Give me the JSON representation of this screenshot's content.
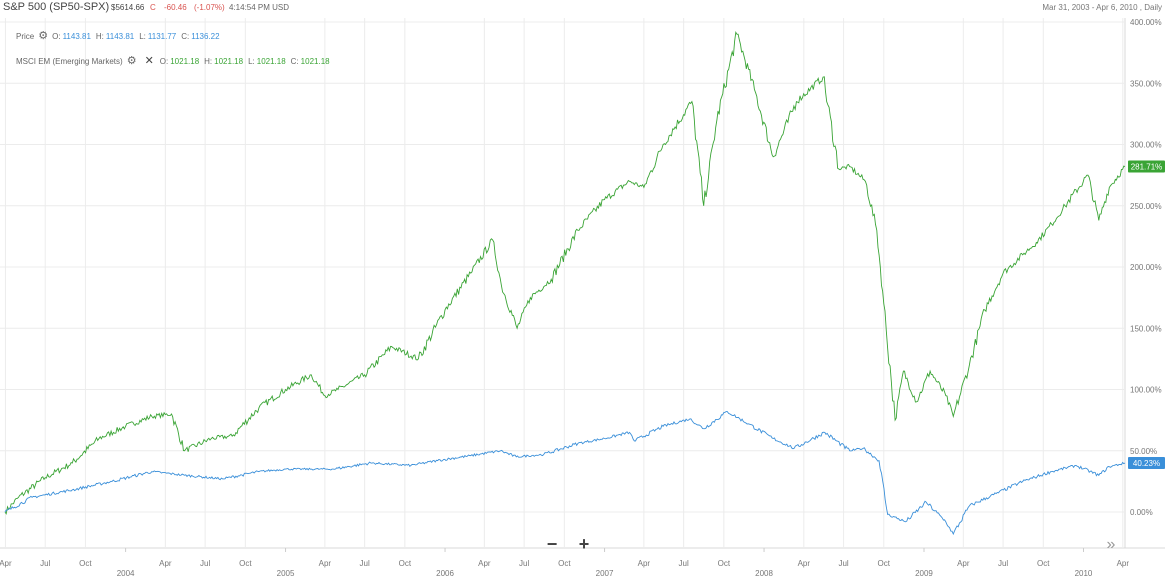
{
  "header": {
    "symbol": "S&P 500 (SP50-SPX)",
    "last_price": "$5614.66",
    "close_flag": "C",
    "change": "-60.46",
    "change_pct": "(-1.07%)",
    "time": "4:14:54 PM USD",
    "date_range": "Mar 31, 2003 - Apr 6, 2010 , Daily"
  },
  "legend": {
    "price": {
      "label": "Price",
      "icon": "gear-icon",
      "o_label": "O:",
      "o": "1143.81",
      "h_label": "H:",
      "h": "1143.81",
      "l_label": "L:",
      "l": "1131.77",
      "c_label": "C:",
      "c": "1136.22"
    },
    "msci": {
      "label": "MSCI EM (Emerging Markets)",
      "icon": "gear-icon",
      "remove_icon": "close-icon",
      "o_label": "O:",
      "o": "1021.18",
      "h_label": "H:",
      "h": "1021.18",
      "l_label": "L:",
      "l": "1021.18",
      "c_label": "C:",
      "c": "1021.18"
    }
  },
  "controls": {
    "zoom_out": "−",
    "zoom_in": "+",
    "scroll_right": "»"
  },
  "colors": {
    "price": "#3a8fd9",
    "msci": "#3aa435",
    "grid": "#ececec"
  },
  "chart_data": {
    "type": "line",
    "title": "",
    "xlabel": "",
    "ylabel": "",
    "x_range": [
      "2003-03-31",
      "2010-04-06"
    ],
    "ylim": [
      -25,
      405
    ],
    "y_unit": "%",
    "y_ticks": [
      "0.00%",
      "50.00%",
      "100.00%",
      "150.00%",
      "200.00%",
      "250.00%",
      "300.00%",
      "350.00%",
      "400.00%"
    ],
    "y_tick_values": [
      0,
      50,
      100,
      150,
      200,
      250,
      300,
      350,
      400
    ],
    "x_month_ticks": [
      {
        "label": "Apr",
        "date": "2003-04-01"
      },
      {
        "label": "Jul",
        "date": "2003-07-01"
      },
      {
        "label": "Oct",
        "date": "2003-10-01"
      },
      {
        "label": "Apr",
        "date": "2004-04-01"
      },
      {
        "label": "Jul",
        "date": "2004-07-01"
      },
      {
        "label": "Oct",
        "date": "2004-10-01"
      },
      {
        "label": "Apr",
        "date": "2005-04-01"
      },
      {
        "label": "Jul",
        "date": "2005-07-01"
      },
      {
        "label": "Oct",
        "date": "2005-10-01"
      },
      {
        "label": "Apr",
        "date": "2006-04-01"
      },
      {
        "label": "Jul",
        "date": "2006-07-01"
      },
      {
        "label": "Oct",
        "date": "2006-10-01"
      },
      {
        "label": "Apr",
        "date": "2007-04-01"
      },
      {
        "label": "Jul",
        "date": "2007-07-01"
      },
      {
        "label": "Oct",
        "date": "2007-10-01"
      },
      {
        "label": "Apr",
        "date": "2008-04-01"
      },
      {
        "label": "Jul",
        "date": "2008-07-01"
      },
      {
        "label": "Oct",
        "date": "2008-10-01"
      },
      {
        "label": "Apr",
        "date": "2009-04-01"
      },
      {
        "label": "Jul",
        "date": "2009-07-01"
      },
      {
        "label": "Oct",
        "date": "2009-10-01"
      },
      {
        "label": "Apr",
        "date": "2010-04-01"
      }
    ],
    "x_year_ticks": [
      {
        "label": "2004",
        "date": "2004-01-01"
      },
      {
        "label": "2005",
        "date": "2005-01-01"
      },
      {
        "label": "2006",
        "date": "2006-01-01"
      },
      {
        "label": "2007",
        "date": "2007-01-01"
      },
      {
        "label": "2008",
        "date": "2008-01-01"
      },
      {
        "label": "2009",
        "date": "2009-01-01"
      },
      {
        "label": "2010",
        "date": "2010-01-01"
      }
    ],
    "grid": true,
    "series": [
      {
        "name": "MSCI EM (Emerging Markets)",
        "color": "#3aa435",
        "last_label": "281.71%",
        "dates": [
          "2003-03-31",
          "2003-05-01",
          "2003-07-01",
          "2003-09-01",
          "2003-11-01",
          "2004-01-01",
          "2004-03-01",
          "2004-04-15",
          "2004-05-15",
          "2004-07-15",
          "2004-09-01",
          "2004-11-01",
          "2005-01-01",
          "2005-03-01",
          "2005-04-01",
          "2005-05-01",
          "2005-07-01",
          "2005-09-01",
          "2005-11-01",
          "2006-01-01",
          "2006-03-01",
          "2006-04-20",
          "2006-05-10",
          "2006-06-15",
          "2006-07-15",
          "2006-09-01",
          "2006-11-01",
          "2007-01-01",
          "2007-02-27",
          "2007-04-01",
          "2007-05-15",
          "2007-07-20",
          "2007-08-16",
          "2007-09-15",
          "2007-10-31",
          "2007-12-10",
          "2008-01-22",
          "2008-03-15",
          "2008-05-15",
          "2008-06-20",
          "2008-07-15",
          "2008-08-20",
          "2008-09-15",
          "2008-10-01",
          "2008-10-27",
          "2008-11-15",
          "2008-12-15",
          "2009-01-15",
          "2009-02-20",
          "2009-03-09",
          "2009-04-15",
          "2009-05-20",
          "2009-07-01",
          "2009-08-15",
          "2009-09-15",
          "2009-10-20",
          "2009-11-20",
          "2010-01-11",
          "2010-02-05",
          "2010-03-01",
          "2010-04-06"
        ],
        "values": [
          0,
          12,
          28,
          40,
          60,
          70,
          78,
          80,
          50,
          60,
          62,
          85,
          100,
          112,
          95,
          100,
          112,
          135,
          125,
          165,
          195,
          222,
          185,
          150,
          175,
          190,
          230,
          255,
          270,
          265,
          300,
          335,
          250,
          320,
          390,
          345,
          290,
          335,
          355,
          280,
          282,
          270,
          230,
          170,
          75,
          115,
          90,
          115,
          95,
          78,
          120,
          165,
          195,
          210,
          220,
          235,
          250,
          275,
          238,
          265,
          282
        ]
      },
      {
        "name": "Price",
        "color": "#3a8fd9",
        "last_label": "40.23%",
        "dates": [
          "2003-03-31",
          "2003-06-01",
          "2003-09-01",
          "2003-12-01",
          "2004-03-01",
          "2004-05-15",
          "2004-08-10",
          "2004-11-01",
          "2005-01-01",
          "2005-04-20",
          "2005-07-15",
          "2005-10-15",
          "2005-12-15",
          "2006-03-01",
          "2006-05-08",
          "2006-06-13",
          "2006-08-15",
          "2006-11-01",
          "2007-01-01",
          "2007-02-27",
          "2007-03-10",
          "2007-05-15",
          "2007-07-15",
          "2007-08-16",
          "2007-10-09",
          "2007-11-26",
          "2008-01-22",
          "2008-03-10",
          "2008-05-19",
          "2008-07-15",
          "2008-08-15",
          "2008-09-20",
          "2008-10-10",
          "2008-11-20",
          "2009-01-06",
          "2009-02-20",
          "2009-03-09",
          "2009-04-15",
          "2009-06-15",
          "2009-08-15",
          "2009-10-20",
          "2009-12-15",
          "2010-02-05",
          "2010-03-01",
          "2010-04-06"
        ],
        "values": [
          0,
          12,
          18,
          25,
          33,
          30,
          27,
          33,
          35,
          35,
          40,
          38,
          42,
          46,
          50,
          45,
          47,
          56,
          60,
          65,
          58,
          70,
          76,
          68,
          82,
          72,
          60,
          52,
          65,
          50,
          52,
          42,
          -2,
          -8,
          8,
          -8,
          -18,
          5,
          15,
          25,
          33,
          38,
          30,
          37,
          40
        ]
      }
    ]
  }
}
